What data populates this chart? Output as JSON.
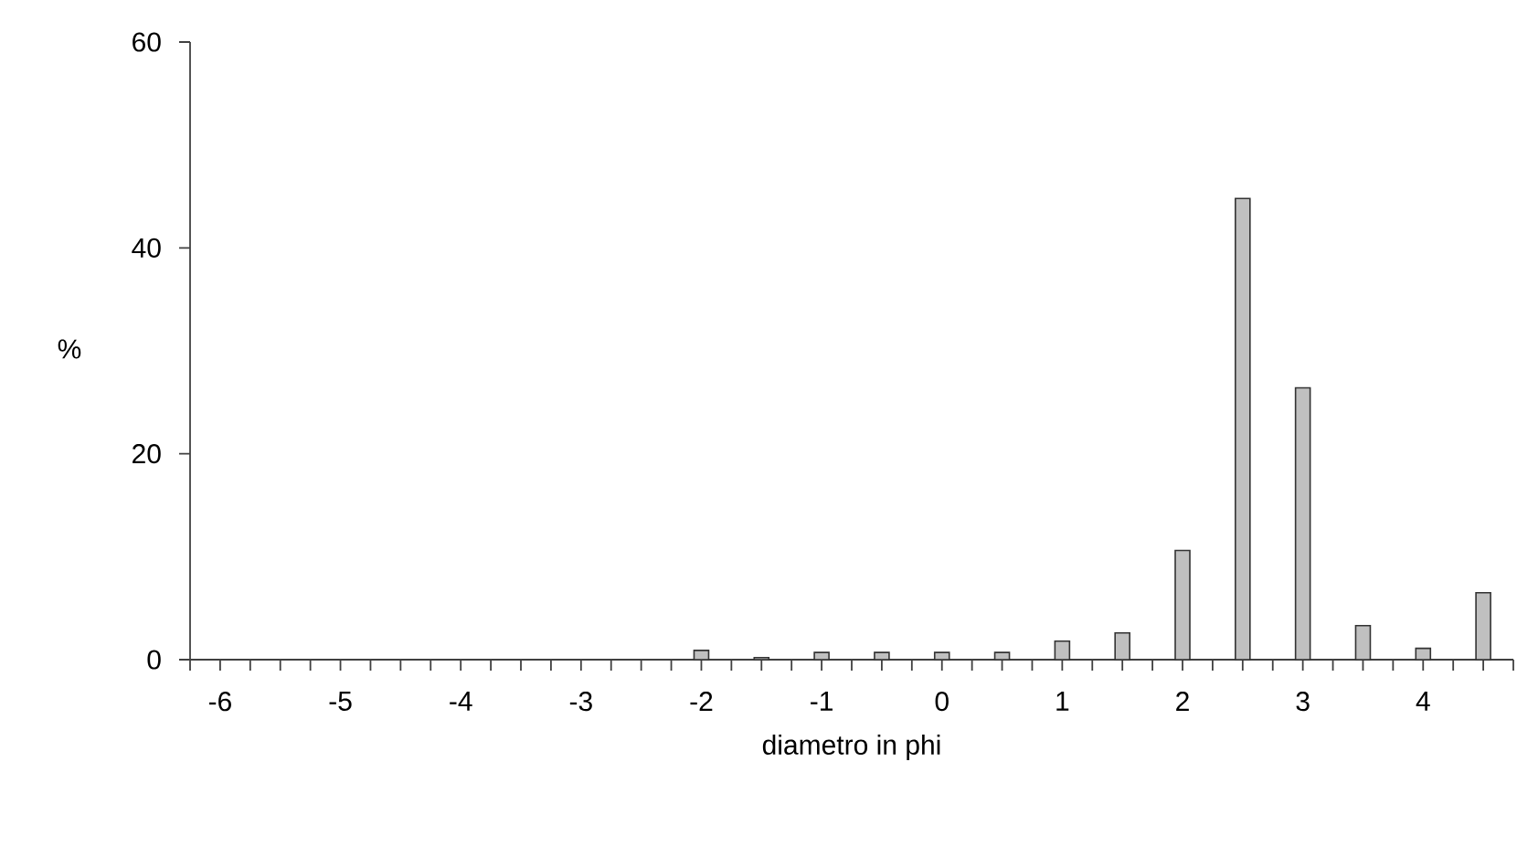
{
  "chart_data": {
    "type": "bar",
    "xlabel": "diametro in phi",
    "ylabel": "%",
    "x": [
      -2,
      -1.5,
      -1,
      -0.5,
      0,
      0.5,
      1,
      1.5,
      2,
      2.5,
      3,
      3.5,
      4,
      4.5
    ],
    "values": [
      0.9,
      0.2,
      0.7,
      0.7,
      0.7,
      0.7,
      1.8,
      2.6,
      10.6,
      44.8,
      26.4,
      3.3,
      1.1,
      6.5
    ],
    "color": "#c0c0c0",
    "xlim": [
      -6.25,
      4.75
    ],
    "xticks": [
      {
        "value": -6.25,
        "label": null
      },
      -6,
      {
        "value": -5.75,
        "label": null
      },
      {
        "value": -5.5,
        "label": null
      },
      {
        "value": -5.25,
        "label": null
      },
      -5,
      {
        "value": -4.75,
        "label": null
      },
      {
        "value": -4.5,
        "label": null
      },
      {
        "value": -4.25,
        "label": null
      },
      -4,
      {
        "value": -3.75,
        "label": null
      },
      {
        "value": -3.5,
        "label": null
      },
      {
        "value": -3.25,
        "label": null
      },
      -3,
      {
        "value": -2.75,
        "label": null
      },
      {
        "value": -2.5,
        "label": null
      },
      {
        "value": -2.25,
        "label": null
      },
      -2,
      {
        "value": -1.75,
        "label": null
      },
      {
        "value": -1.5,
        "label": null
      },
      {
        "value": -1.25,
        "label": null
      },
      -1,
      {
        "value": -0.75,
        "label": null
      },
      {
        "value": -0.5,
        "label": null
      },
      {
        "value": -0.25,
        "label": null
      },
      0,
      {
        "value": 0.25,
        "label": null
      },
      {
        "value": 0.5,
        "label": null
      },
      {
        "value": 0.75,
        "label": null
      },
      1,
      {
        "value": 1.25,
        "label": null
      },
      {
        "value": 1.5,
        "label": null
      },
      {
        "value": 1.75,
        "label": null
      },
      2,
      {
        "value": 2.25,
        "label": null
      },
      {
        "value": 2.5,
        "label": null
      },
      {
        "value": 2.75,
        "label": null
      },
      3,
      {
        "value": 3.25,
        "label": null
      },
      {
        "value": 3.5,
        "label": null
      },
      {
        "value": 3.75,
        "label": null
      },
      4,
      {
        "value": 4.25,
        "label": null
      },
      {
        "value": 4.5,
        "label": null
      },
      {
        "value": 4.75,
        "label": null
      }
    ],
    "ylim": [
      0,
      60
    ],
    "yticks": [
      0,
      20,
      40,
      60
    ],
    "grid": false
  }
}
